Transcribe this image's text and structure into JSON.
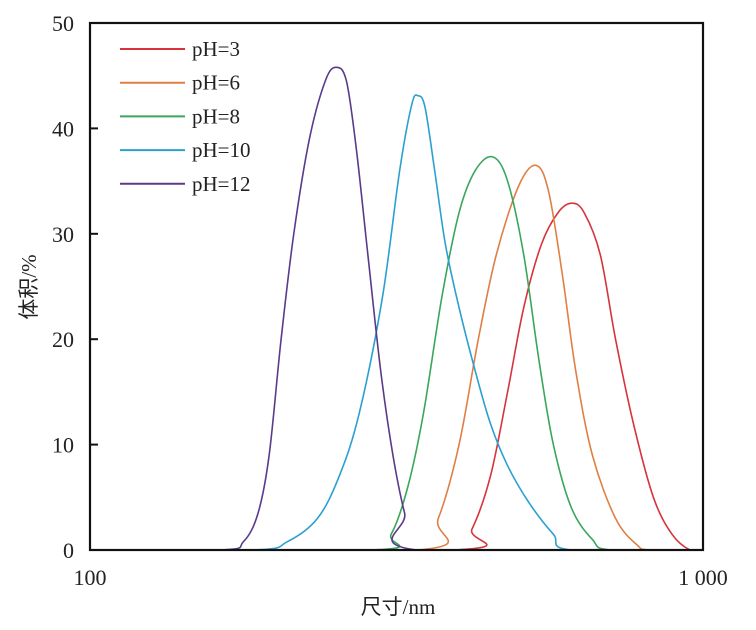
{
  "chart_data": {
    "type": "line",
    "xscale": "log",
    "xlabel": "尺寸/nm",
    "ylabel": "体积/%",
    "xlim": [
      100,
      1000
    ],
    "ylim": [
      0,
      50
    ],
    "xticks": [
      {
        "value": 100,
        "label": "100"
      },
      {
        "value": 1000,
        "label": "1 000"
      }
    ],
    "yticks": [
      {
        "value": 0,
        "label": "0"
      },
      {
        "value": 10,
        "label": "10"
      },
      {
        "value": 20,
        "label": "20"
      },
      {
        "value": 30,
        "label": "30"
      },
      {
        "value": 40,
        "label": "40"
      },
      {
        "value": 50,
        "label": "50"
      }
    ],
    "legend": "top-left",
    "grid": false,
    "series": [
      {
        "name": "pH=3",
        "color": "#d6333c",
        "points": [
          [
            100,
            0
          ],
          [
            394,
            0
          ],
          [
            420,
            2
          ],
          [
            450,
            7
          ],
          [
            480,
            15
          ],
          [
            510,
            23
          ],
          [
            545,
            29
          ],
          [
            580,
            32
          ],
          [
            611,
            32.9
          ],
          [
            640,
            32
          ],
          [
            680,
            28
          ],
          [
            720,
            20
          ],
          [
            770,
            12
          ],
          [
            830,
            5
          ],
          [
            890,
            1.5
          ],
          [
            952,
            0
          ],
          [
            1000,
            0
          ]
        ]
      },
      {
        "name": "pH=6",
        "color": "#e07f45",
        "points": [
          [
            100,
            0
          ],
          [
            343,
            0
          ],
          [
            370,
            3
          ],
          [
            400,
            10
          ],
          [
            430,
            20
          ],
          [
            460,
            28
          ],
          [
            500,
            34.5
          ],
          [
            534,
            36.5
          ],
          [
            560,
            34
          ],
          [
            590,
            26
          ],
          [
            620,
            17
          ],
          [
            660,
            9
          ],
          [
            720,
            3
          ],
          [
            780,
            0.5
          ],
          [
            820,
            0
          ],
          [
            1000,
            0
          ]
        ]
      },
      {
        "name": "pH=8",
        "color": "#3aa65b",
        "points": [
          [
            100,
            0
          ],
          [
            290,
            0
          ],
          [
            310,
            1.5
          ],
          [
            330,
            6
          ],
          [
            350,
            13
          ],
          [
            375,
            24
          ],
          [
            400,
            32
          ],
          [
            425,
            36
          ],
          [
            454,
            37.3
          ],
          [
            480,
            35
          ],
          [
            510,
            28
          ],
          [
            540,
            18
          ],
          [
            570,
            10
          ],
          [
            610,
            4
          ],
          [
            660,
            1
          ],
          [
            708,
            0
          ],
          [
            1000,
            0
          ]
        ]
      },
      {
        "name": "pH=10",
        "color": "#2aa0d0",
        "points": [
          [
            100,
            0
          ],
          [
            185,
            0
          ],
          [
            210,
            0.8
          ],
          [
            235,
            3
          ],
          [
            255,
            7
          ],
          [
            275,
            13
          ],
          [
            300,
            24
          ],
          [
            320,
            36
          ],
          [
            335,
            42.3
          ],
          [
            343,
            43.1
          ],
          [
            352,
            42
          ],
          [
            365,
            36
          ],
          [
            380,
            29
          ],
          [
            400,
            23
          ],
          [
            425,
            17
          ],
          [
            450,
            12
          ],
          [
            480,
            8
          ],
          [
            520,
            4.5
          ],
          [
            570,
            1.5
          ],
          [
            611,
            0
          ],
          [
            1000,
            0
          ]
        ]
      },
      {
        "name": "pH=12",
        "color": "#5a3a8a",
        "points": [
          [
            100,
            0
          ],
          [
            164,
            0
          ],
          [
            178,
            0.8
          ],
          [
            188,
            3.5
          ],
          [
            196,
            9
          ],
          [
            205,
            20
          ],
          [
            215,
            30
          ],
          [
            228,
            39
          ],
          [
            242,
            44.5
          ],
          [
            252,
            45.8
          ],
          [
            262,
            44.5
          ],
          [
            272,
            38
          ],
          [
            284,
            28
          ],
          [
            298,
            17
          ],
          [
            312,
            9
          ],
          [
            326,
            3.5
          ],
          [
            341,
            0
          ],
          [
            1000,
            0
          ]
        ]
      }
    ]
  }
}
